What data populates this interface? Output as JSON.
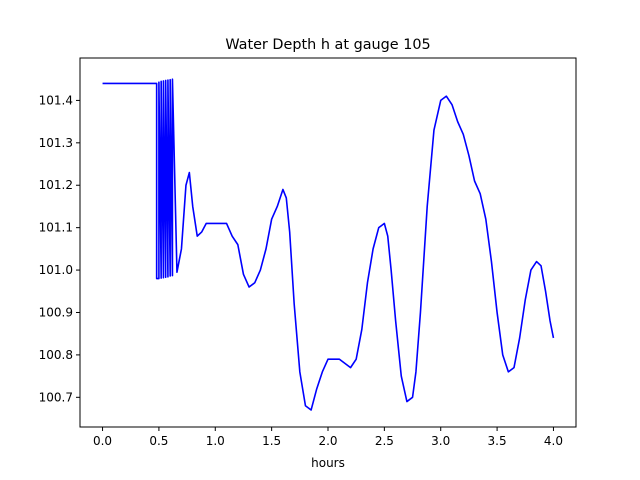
{
  "chart_data": {
    "type": "line",
    "title": "Water Depth h at gauge 105",
    "xlabel": "hours",
    "ylabel": "",
    "xlim": [
      -0.2,
      4.2
    ],
    "ylim": [
      100.63,
      101.5
    ],
    "grid": false,
    "xticks": [
      0.0,
      0.5,
      1.0,
      1.5,
      2.0,
      2.5,
      3.0,
      3.5,
      4.0
    ],
    "xtick_labels": [
      "0.0",
      "0.5",
      "1.0",
      "1.5",
      "2.0",
      "2.5",
      "3.0",
      "3.5",
      "4.0"
    ],
    "yticks": [
      100.7,
      100.8,
      100.9,
      101.0,
      101.1,
      101.2,
      101.3,
      101.4
    ],
    "ytick_labels": [
      "100.7",
      "100.8",
      "100.9",
      "101.0",
      "101.1",
      "101.2",
      "101.3",
      "101.4"
    ],
    "series": [
      {
        "color": "#0000ff",
        "x": [
          0.0,
          0.25,
          0.48,
          0.48,
          0.5,
          0.5,
          0.52,
          0.52,
          0.54,
          0.54,
          0.56,
          0.56,
          0.58,
          0.58,
          0.6,
          0.6,
          0.62,
          0.62,
          0.66,
          0.7,
          0.74,
          0.77,
          0.8,
          0.84,
          0.88,
          0.92,
          0.96,
          1.0,
          1.05,
          1.1,
          1.15,
          1.2,
          1.25,
          1.3,
          1.35,
          1.4,
          1.45,
          1.5,
          1.55,
          1.6,
          1.63,
          1.66,
          1.7,
          1.75,
          1.8,
          1.85,
          1.9,
          1.95,
          2.0,
          2.05,
          2.1,
          2.15,
          2.2,
          2.25,
          2.3,
          2.35,
          2.4,
          2.45,
          2.5,
          2.53,
          2.56,
          2.6,
          2.65,
          2.7,
          2.75,
          2.78,
          2.82,
          2.88,
          2.94,
          3.0,
          3.05,
          3.1,
          3.15,
          3.2,
          3.25,
          3.3,
          3.35,
          3.4,
          3.45,
          3.5,
          3.55,
          3.6,
          3.65,
          3.7,
          3.75,
          3.8,
          3.85,
          3.89,
          3.93,
          3.97,
          4.0
        ],
        "y": [
          101.44,
          101.44,
          101.44,
          100.98,
          100.98,
          101.443,
          100.981,
          101.445,
          100.982,
          101.446,
          100.983,
          101.447,
          100.984,
          101.448,
          100.986,
          101.449,
          100.987,
          101.45,
          100.995,
          101.05,
          101.2,
          101.23,
          101.15,
          101.08,
          101.09,
          101.11,
          101.11,
          101.11,
          101.11,
          101.11,
          101.08,
          101.06,
          100.99,
          100.96,
          100.97,
          101.0,
          101.05,
          101.12,
          101.15,
          101.19,
          101.17,
          101.09,
          100.92,
          100.76,
          100.68,
          100.67,
          100.72,
          100.76,
          100.79,
          100.79,
          100.79,
          100.78,
          100.77,
          100.79,
          100.86,
          100.97,
          101.05,
          101.1,
          101.11,
          101.08,
          101.0,
          100.88,
          100.75,
          100.69,
          100.7,
          100.76,
          100.9,
          101.15,
          101.33,
          101.4,
          101.41,
          101.39,
          101.35,
          101.32,
          101.27,
          101.21,
          101.18,
          101.12,
          101.02,
          100.9,
          100.8,
          100.76,
          100.77,
          100.84,
          100.93,
          101.0,
          101.02,
          101.01,
          100.95,
          100.88,
          100.84
        ]
      }
    ]
  }
}
